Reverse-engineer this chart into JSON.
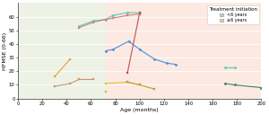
{
  "xlabel": "Age (months)",
  "ylabel": "HFMSE (0-66)",
  "xlim": [
    0,
    200
  ],
  "ylim": [
    0,
    70
  ],
  "xticks": [
    0,
    20,
    40,
    60,
    80,
    100,
    120,
    140,
    160,
    180,
    200
  ],
  "yticks": [
    0,
    10,
    20,
    30,
    40,
    50,
    60
  ],
  "cutoff_x": 72,
  "bg_left": "#eef2e6",
  "bg_right": "#fce9e1",
  "legend_title": "Treatment initiation",
  "legend_entries": [
    "<6 years",
    "≥6 years"
  ],
  "legend_colors": [
    "#a8d8c8",
    "#f5c8a0"
  ],
  "lines": [
    {
      "x": [
        30,
        43,
        50,
        62
      ],
      "y": [
        9,
        11,
        14,
        14
      ],
      "color": "#c8957a",
      "marker": "s",
      "ms": 1.8,
      "lw": 0.8
    },
    {
      "x": [
        30,
        43
      ],
      "y": [
        16,
        29
      ],
      "color": "#e8a030",
      "marker": "s",
      "ms": 1.8,
      "lw": 0.8
    },
    {
      "x": [
        50,
        62,
        72,
        78,
        90,
        100
      ],
      "y": [
        53,
        57,
        58,
        61,
        63,
        63
      ],
      "color": "#5ec8b0",
      "marker": "o",
      "ms": 1.8,
      "lw": 0.8
    },
    {
      "x": [
        50,
        62,
        72,
        78,
        90,
        100
      ],
      "y": [
        52,
        56,
        58,
        59,
        61,
        62
      ],
      "color": "#d08080",
      "marker": "s",
      "ms": 1.8,
      "lw": 0.8
    },
    {
      "x": [
        72,
        78,
        91,
        100,
        112,
        122,
        130
      ],
      "y": [
        35,
        36,
        42,
        36,
        29,
        26,
        25
      ],
      "color": "#4a90d8",
      "marker": "o",
      "ms": 1.8,
      "lw": 0.8
    },
    {
      "x": [
        72,
        90,
        100
      ],
      "y": [
        11,
        12,
        10
      ],
      "color": "#d8c030",
      "marker": "s",
      "ms": 1.8,
      "lw": 0.8
    },
    {
      "x": [
        72
      ],
      "y": [
        5
      ],
      "color": "#c8b840",
      "marker": "s",
      "ms": 1.8,
      "lw": 0.8
    },
    {
      "x": [
        90,
        100,
        112
      ],
      "y": [
        12,
        10,
        7
      ],
      "color": "#c0a030",
      "marker": "s",
      "ms": 1.8,
      "lw": 0.8
    },
    {
      "x": [
        90,
        100
      ],
      "y": [
        19,
        63
      ],
      "color": "#c05050",
      "marker": "s",
      "ms": 1.8,
      "lw": 0.8
    },
    {
      "x": [
        170,
        178
      ],
      "y": [
        23,
        23
      ],
      "color": "#5ec8b0",
      "marker": "o",
      "ms": 1.8,
      "lw": 0.8
    },
    {
      "x": [
        170,
        178,
        200
      ],
      "y": [
        11,
        10,
        8
      ],
      "color": "#408060",
      "marker": "o",
      "ms": 1.8,
      "lw": 0.8
    }
  ]
}
